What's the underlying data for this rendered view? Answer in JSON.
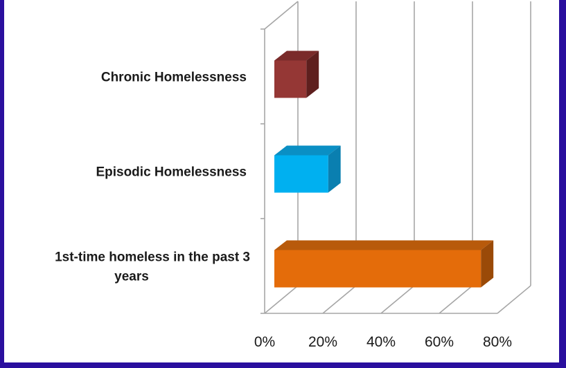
{
  "chart_data": {
    "type": "bar",
    "orientation": "horizontal",
    "three_d": true,
    "title": "",
    "xlabel": "",
    "ylabel": "",
    "categories": [
      "1st-time homeless in the past 3 years",
      "Episodic Homelessness",
      "Chronic Homelessness"
    ],
    "category_label_lines": [
      [
        "1st-time homeless in the past 3",
        "years"
      ],
      [
        "Episodic Homelessness"
      ],
      [
        "Chronic Homelessness"
      ]
    ],
    "values": [
      0.71,
      0.185,
      0.11
    ],
    "xlim": [
      0,
      0.8
    ],
    "x_ticks": [
      0,
      0.2,
      0.4,
      0.6,
      0.8
    ],
    "x_tick_labels": [
      "0%",
      "20%",
      "40%",
      "60%",
      "80%"
    ],
    "grid": true,
    "legend": "none",
    "colors": {
      "bars": [
        "#e46c0a",
        "#00b0f0",
        "#953735"
      ],
      "bar_tops": [
        "#b85a0b",
        "#0a8fc4",
        "#7a2b2a"
      ],
      "bar_sides": [
        "#9a4a08",
        "#0a7fb0",
        "#5e1f1e"
      ],
      "grid": "#a6a6a6",
      "border": "#2a0f9e"
    }
  }
}
